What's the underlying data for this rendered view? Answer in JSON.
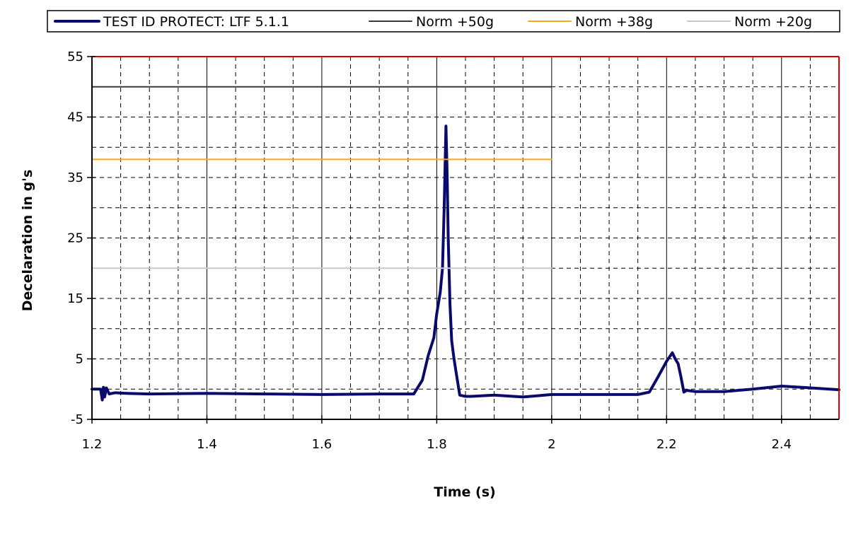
{
  "chart_data": {
    "type": "line",
    "xlabel": "Time (s)",
    "ylabel": "Decelaration in g's",
    "xlim": [
      1.2,
      2.5
    ],
    "ylim": [
      -5,
      55
    ],
    "x_ticks": [
      1.2,
      1.4,
      1.6,
      1.8,
      2,
      2.2,
      2.4
    ],
    "y_ticks": [
      -5,
      5,
      15,
      25,
      35,
      45,
      55
    ],
    "grid": {
      "major": "solid",
      "minor": "dashed",
      "x_minor_step": 0.05,
      "y_minor_step": 5
    },
    "legend_position": "top",
    "plot_border_color": "#e00000",
    "series": [
      {
        "name": "TEST ID PROTECT: LTF 5.1.1",
        "color": "#0a0a6e",
        "line_width": 4,
        "x": [
          1.2,
          1.215,
          1.218,
          1.22,
          1.222,
          1.225,
          1.23,
          1.24,
          1.26,
          1.3,
          1.4,
          1.5,
          1.6,
          1.7,
          1.76,
          1.775,
          1.785,
          1.795,
          1.8,
          1.806,
          1.81,
          1.813,
          1.816,
          1.818,
          1.82,
          1.823,
          1.826,
          1.83,
          1.835,
          1.84,
          1.85,
          1.86,
          1.9,
          1.95,
          2.0,
          2.05,
          2.1,
          2.15,
          2.17,
          2.185,
          2.2,
          2.21,
          2.215,
          2.22,
          2.225,
          2.23,
          2.235,
          2.25,
          2.3,
          2.35,
          2.4,
          2.45,
          2.5
        ],
        "values": [
          0,
          0,
          -1.8,
          0.3,
          -1.3,
          0.2,
          -0.8,
          -0.6,
          -0.7,
          -0.8,
          -0.7,
          -0.8,
          -0.9,
          -0.8,
          -0.8,
          1.5,
          5.5,
          8.5,
          12.5,
          16.0,
          20.0,
          30.0,
          43.5,
          36.0,
          25.0,
          14.0,
          8.0,
          5.0,
          2.0,
          -1.0,
          -1.2,
          -1.2,
          -1.0,
          -1.3,
          -0.9,
          -0.9,
          -0.9,
          -0.9,
          -0.5,
          2.0,
          4.6,
          6.0,
          5.0,
          4.2,
          2.0,
          -0.5,
          -0.2,
          -0.4,
          -0.4,
          0.0,
          0.5,
          0.2,
          -0.1
        ]
      },
      {
        "name": "Norm +50g",
        "color": "#3a3a3a",
        "line_width": 2,
        "x": [
          1.2,
          2.0
        ],
        "values": [
          50,
          50
        ]
      },
      {
        "name": "Norm +38g",
        "color": "#f5a623",
        "line_width": 2,
        "x": [
          1.2,
          2.0
        ],
        "values": [
          38,
          38
        ]
      },
      {
        "name": "Norm +20g",
        "color": "#c8c8c8",
        "line_width": 2,
        "x": [
          1.2,
          2.0
        ],
        "values": [
          20,
          20
        ]
      }
    ]
  }
}
